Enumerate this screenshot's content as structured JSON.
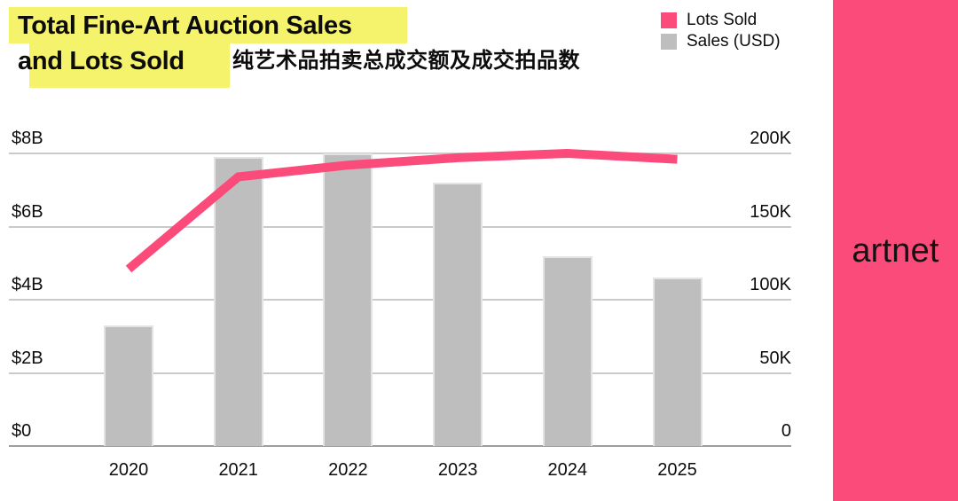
{
  "title": {
    "line1": "Total Fine-Art Auction Sales",
    "line2": "and Lots Sold",
    "subtitle_zh": "纯艺术品拍卖总成交额及成交拍品数"
  },
  "legend": {
    "items": [
      {
        "label": "Lots Sold",
        "color": "#fb4b7a"
      },
      {
        "label": "Sales (USD)",
        "color": "#bebebe"
      }
    ]
  },
  "brand": {
    "logo_text": "artnet",
    "sidebar_color": "#fb4b7a"
  },
  "theme": {
    "highlight_yellow": "#f5f26b",
    "gridline_gray": "#cacaca",
    "baseline_gray": "#9e9e9e"
  },
  "chart_data": {
    "type": "bar+line combo",
    "title": "Total Fine-Art Auction Sales and Lots Sold",
    "categories": [
      "2020",
      "2021",
      "2022",
      "2023",
      "2024",
      "2025"
    ],
    "series": [
      {
        "name": "Sales (USD)",
        "type": "bar",
        "axis": "left",
        "unit": "USD billions",
        "values": [
          3.3,
          7.9,
          8.0,
          7.2,
          5.2,
          4.6
        ],
        "color": "#bebebe"
      },
      {
        "name": "Lots Sold",
        "type": "line",
        "axis": "right",
        "unit": "thousands of lots",
        "values": [
          121,
          184,
          192,
          197,
          200,
          196
        ],
        "color": "#fb4b7a"
      }
    ],
    "left_axis": {
      "ticks": [
        "$0",
        "$2B",
        "$4B",
        "$6B",
        "$8B"
      ],
      "min": 0,
      "max": 8,
      "unit": "USD billions"
    },
    "right_axis": {
      "ticks": [
        "0",
        "50K",
        "100K",
        "150K",
        "200K"
      ],
      "min": 0,
      "max": 200,
      "unit": "thousands"
    },
    "grid": true,
    "legend_position": "top-right"
  }
}
